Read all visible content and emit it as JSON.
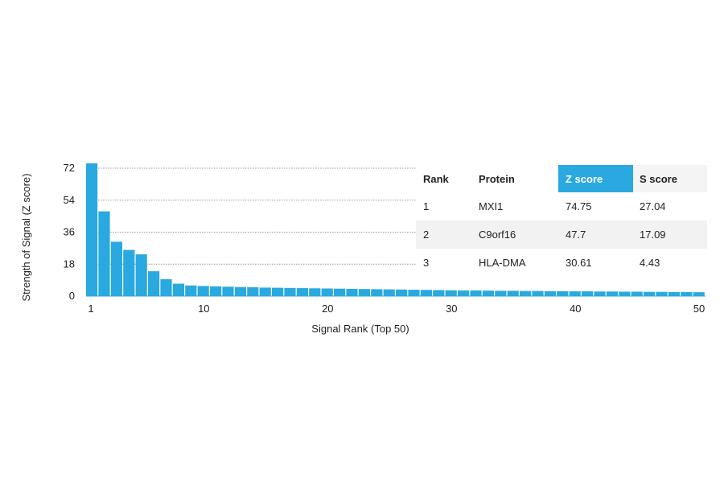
{
  "chart_data": {
    "type": "bar",
    "xlabel": "Signal Rank (Top 50)",
    "ylabel": "Strength of Signal (Z score)",
    "ylim": [
      0,
      75
    ],
    "yticks": [
      0,
      18,
      36,
      54,
      72
    ],
    "xticks": [
      1,
      10,
      20,
      30,
      40,
      50
    ],
    "xlim": [
      1,
      50
    ],
    "grid": "horizontal dotted lines at y ticks",
    "bar_color": "#29a9e0",
    "x": [
      1,
      2,
      3,
      4,
      5,
      6,
      7,
      8,
      9,
      10,
      11,
      12,
      13,
      14,
      15,
      16,
      17,
      18,
      19,
      20,
      21,
      22,
      23,
      24,
      25,
      26,
      27,
      28,
      29,
      30,
      31,
      32,
      33,
      34,
      35,
      36,
      37,
      38,
      39,
      40,
      41,
      42,
      43,
      44,
      45,
      46,
      47,
      48,
      49,
      50
    ],
    "values": [
      74.75,
      47.7,
      30.61,
      26.0,
      23.5,
      14.0,
      9.5,
      7.0,
      6.0,
      5.7,
      5.5,
      5.3,
      5.1,
      5.0,
      4.8,
      4.7,
      4.6,
      4.5,
      4.4,
      4.3,
      4.2,
      4.1,
      4.0,
      3.9,
      3.8,
      3.7,
      3.6,
      3.5,
      3.4,
      3.3,
      3.2,
      3.2,
      3.1,
      3.0,
      3.0,
      2.9,
      2.9,
      2.8,
      2.8,
      2.7,
      2.7,
      2.6,
      2.6,
      2.5,
      2.5,
      2.4,
      2.4,
      2.3,
      2.3,
      2.2
    ]
  },
  "table": {
    "headers": [
      "Rank",
      "Protein",
      "Z score",
      "S score"
    ],
    "highlight_color": "#29a9e0",
    "rows": [
      [
        "1",
        "MXI1",
        "74.75",
        "27.04"
      ],
      [
        "2",
        "C9orf16",
        "47.7",
        "17.09"
      ],
      [
        "3",
        "HLA-DMA",
        "30.61",
        "4.43"
      ]
    ]
  }
}
